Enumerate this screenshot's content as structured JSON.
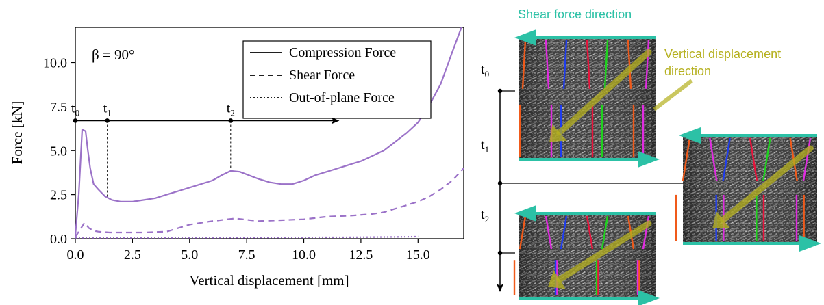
{
  "chart_data": {
    "type": "line",
    "annotation": "β = 90°",
    "xlabel": "Vertical displacement [mm]",
    "ylabel": "Force [kN]",
    "xlim": [
      0,
      17
    ],
    "ylim": [
      0,
      12
    ],
    "xticks": [
      "0.0",
      "2.5",
      "5.0",
      "7.5",
      "10.0",
      "12.5",
      "15.0"
    ],
    "yticks": [
      "0.0",
      "2.5",
      "5.0",
      "7.5",
      "10.0"
    ],
    "grid": false,
    "legend_position": "top-right",
    "series": [
      {
        "name": "Compression Force",
        "style": "solid",
        "color": "#9b72c8",
        "x": [
          0.0,
          0.15,
          0.3,
          0.45,
          0.55,
          0.65,
          0.8,
          1.0,
          1.3,
          1.6,
          2.0,
          2.5,
          3.0,
          3.5,
          4.0,
          4.5,
          5.0,
          5.5,
          6.0,
          6.4,
          6.8,
          7.2,
          7.6,
          8.0,
          8.5,
          9.0,
          9.5,
          10.0,
          10.5,
          11.0,
          11.5,
          12.0,
          12.5,
          13.0,
          13.5,
          14.0,
          14.5,
          15.0,
          15.5,
          16.0,
          16.5,
          16.9
        ],
        "y": [
          0.2,
          2.5,
          6.2,
          6.1,
          5.0,
          4.0,
          3.1,
          2.8,
          2.4,
          2.2,
          2.1,
          2.1,
          2.2,
          2.3,
          2.5,
          2.7,
          2.9,
          3.1,
          3.3,
          3.6,
          3.85,
          3.8,
          3.6,
          3.4,
          3.2,
          3.1,
          3.1,
          3.3,
          3.6,
          3.8,
          4.0,
          4.2,
          4.4,
          4.7,
          5.0,
          5.5,
          6.0,
          6.6,
          7.6,
          8.8,
          10.6,
          12.0
        ]
      },
      {
        "name": "Shear Force",
        "style": "dashed",
        "color": "#9b72c8",
        "x": [
          0.0,
          0.2,
          0.4,
          0.6,
          0.8,
          1.0,
          1.5,
          2.0,
          3.0,
          4.0,
          5.0,
          6.0,
          7.0,
          8.0,
          9.0,
          10.0,
          11.0,
          12.0,
          13.0,
          13.5,
          14.0,
          14.5,
          15.0,
          15.5,
          16.0,
          16.5,
          17.0
        ],
        "y": [
          0.1,
          0.5,
          0.9,
          0.6,
          0.45,
          0.4,
          0.35,
          0.35,
          0.35,
          0.4,
          0.8,
          1.0,
          1.15,
          1.0,
          1.05,
          1.1,
          1.25,
          1.3,
          1.4,
          1.5,
          1.7,
          1.9,
          2.1,
          2.4,
          2.8,
          3.3,
          4.0
        ]
      },
      {
        "name": "Out-of-plane Force",
        "style": "dotted",
        "color": "#9b72c8",
        "x": [
          0.0,
          3.0,
          6.0,
          9.0,
          12.0,
          14.0,
          15.0
        ],
        "y": [
          0.05,
          0.05,
          0.06,
          0.07,
          0.08,
          0.1,
          0.12
        ]
      }
    ],
    "time_markers": [
      {
        "label": "t",
        "sub": "0",
        "x": 0.0
      },
      {
        "label": "t",
        "sub": "1",
        "x": 1.4
      },
      {
        "label": "t",
        "sub": "2",
        "x": 6.8
      }
    ],
    "marker_line_y": 6.7
  },
  "diagram": {
    "shear_title": "Shear force direction",
    "vertical_title_line1": "Vertical displacement",
    "vertical_title_line2": "direction",
    "time_labels": [
      {
        "label": "t",
        "sub": "0"
      },
      {
        "label": "t",
        "sub": "1"
      },
      {
        "label": "t",
        "sub": "2"
      }
    ],
    "colors": {
      "arrow_teal": "#2cc1a6",
      "arrow_olive": "#b5b01e",
      "stripe_colors": [
        "#f05a1a",
        "#e02ce0",
        "#1e3cf0",
        "#e8143c",
        "#1ed21e"
      ]
    }
  }
}
